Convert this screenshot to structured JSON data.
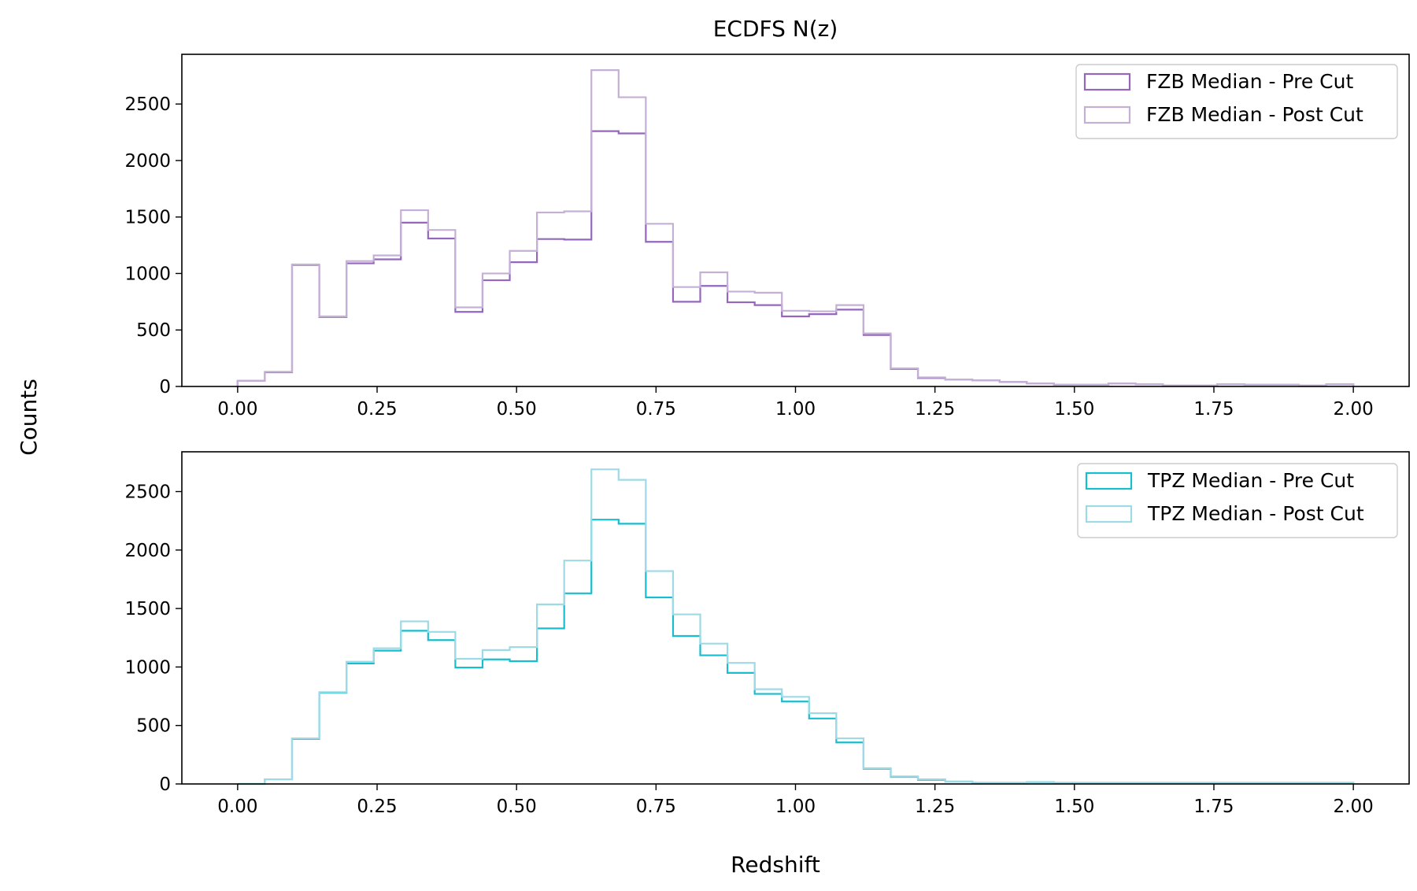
{
  "figure": {
    "title": "ECDFS N(z)",
    "xlabel": "Redshift",
    "ylabel": "Counts"
  },
  "chart_data": [
    {
      "type": "histogram-step",
      "xlim": [
        -0.1,
        2.1
      ],
      "ylim": [
        0,
        2940
      ],
      "xticks": [
        0.0,
        0.25,
        0.5,
        0.75,
        1.0,
        1.25,
        1.5,
        1.75,
        2.0
      ],
      "xtick_labels": [
        "0.00",
        "0.25",
        "0.50",
        "0.75",
        "1.00",
        "1.25",
        "1.50",
        "1.75",
        "2.00"
      ],
      "yticks": [
        0,
        500,
        1000,
        1500,
        2000,
        2500
      ],
      "ytick_labels": [
        "0",
        "500",
        "1000",
        "1500",
        "2000",
        "2500"
      ],
      "bin_edges_range": [
        0.0,
        2.0
      ],
      "n_bins": 41,
      "legend_position": "top-right",
      "series": [
        {
          "name": "FZB Median - Pre Cut",
          "color": "#9467bd",
          "values": [
            50,
            125,
            1075,
            615,
            1090,
            1125,
            1450,
            1310,
            660,
            940,
            1100,
            1305,
            1300,
            2260,
            2240,
            1280,
            750,
            890,
            745,
            720,
            620,
            640,
            680,
            455,
            155,
            75,
            60,
            55,
            40,
            25,
            15,
            15,
            25,
            20,
            10,
            10,
            20,
            15,
            15,
            10,
            20
          ]
        },
        {
          "name": "FZB Median - Post Cut",
          "color": "#c5b0d5",
          "values": [
            50,
            130,
            1080,
            620,
            1110,
            1160,
            1560,
            1385,
            700,
            1000,
            1200,
            1540,
            1550,
            2800,
            2560,
            1440,
            880,
            1010,
            840,
            830,
            670,
            665,
            720,
            470,
            160,
            80,
            60,
            55,
            40,
            25,
            15,
            15,
            25,
            20,
            10,
            10,
            20,
            15,
            15,
            10,
            20
          ]
        }
      ]
    },
    {
      "type": "histogram-step",
      "xlim": [
        -0.1,
        2.1
      ],
      "ylim": [
        0,
        2840
      ],
      "xticks": [
        0.0,
        0.25,
        0.5,
        0.75,
        1.0,
        1.25,
        1.5,
        1.75,
        2.0
      ],
      "xtick_labels": [
        "0.00",
        "0.25",
        "0.50",
        "0.75",
        "1.00",
        "1.25",
        "1.50",
        "1.75",
        "2.00"
      ],
      "yticks": [
        0,
        500,
        1000,
        1500,
        2000,
        2500
      ],
      "ytick_labels": [
        "0",
        "500",
        "1000",
        "1500",
        "2000",
        "2500"
      ],
      "bin_edges_range": [
        0.0,
        2.0
      ],
      "n_bins": 41,
      "legend_position": "top-right",
      "series": [
        {
          "name": "TPZ Median - Pre Cut",
          "color": "#17becf",
          "values": [
            0,
            40,
            385,
            780,
            1030,
            1140,
            1310,
            1230,
            995,
            1065,
            1050,
            1330,
            1630,
            2260,
            2225,
            1595,
            1265,
            1100,
            950,
            770,
            705,
            560,
            355,
            130,
            60,
            35,
            20,
            10,
            10,
            15,
            10,
            10,
            10,
            10,
            10,
            10,
            10,
            10,
            10,
            10,
            10
          ]
        },
        {
          "name": "TPZ Median - Post Cut",
          "color": "#9edae5",
          "values": [
            0,
            40,
            390,
            785,
            1045,
            1160,
            1390,
            1300,
            1070,
            1145,
            1170,
            1535,
            1910,
            2690,
            2600,
            1820,
            1450,
            1200,
            1035,
            810,
            745,
            605,
            390,
            135,
            65,
            40,
            20,
            10,
            10,
            15,
            10,
            10,
            10,
            10,
            10,
            10,
            10,
            10,
            10,
            10,
            10
          ]
        }
      ]
    }
  ]
}
